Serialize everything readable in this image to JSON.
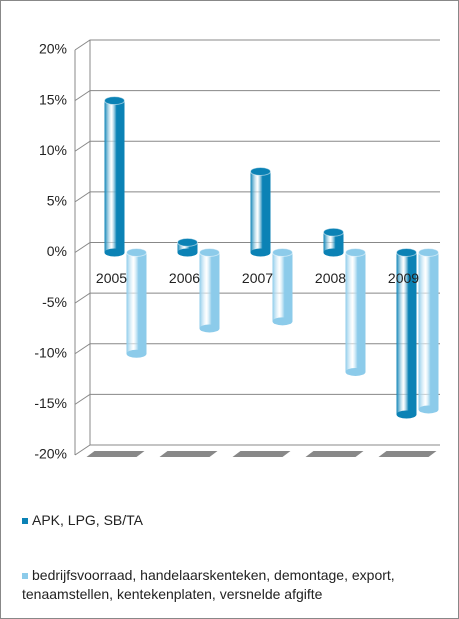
{
  "chart_data": {
    "type": "bar3d",
    "categories": [
      "2005",
      "2006",
      "2007",
      "2008",
      "2009"
    ],
    "series": [
      {
        "name": "APK, LPG, SB/TA",
        "color": "#0b82b5",
        "values": [
          15,
          1,
          8,
          2,
          -16
        ]
      },
      {
        "name": "bedrijfsvoorraad, handelaarskenteken,  demontage, export, tenaamstellen, kentekenplaten,  versnelde afgifte",
        "color": "#8ccbea",
        "values": [
          -10,
          -7.5,
          -6.8,
          -11.8,
          -15.5
        ]
      }
    ],
    "ylim": [
      -20,
      20
    ],
    "yticks": [
      {
        "value": -20,
        "label": "-20%"
      },
      {
        "value": -15,
        "label": "-15%"
      },
      {
        "value": -10,
        "label": "-10%"
      },
      {
        "value": -5,
        "label": "-5%"
      },
      {
        "value": 0,
        "label": "0%"
      },
      {
        "value": 5,
        "label": "5%"
      },
      {
        "value": 10,
        "label": "10%"
      },
      {
        "value": 15,
        "label": "15%"
      },
      {
        "value": 20,
        "label": "20%"
      }
    ],
    "grid": true
  }
}
